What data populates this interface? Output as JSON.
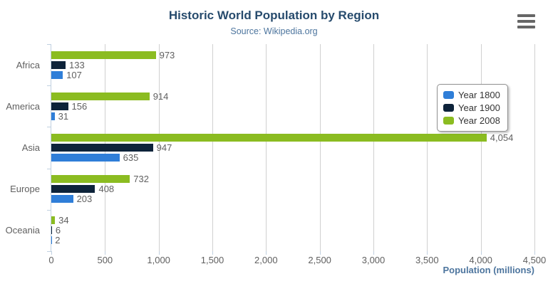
{
  "header": {
    "title": "Historic World Population by Region",
    "subtitle": "Source: Wikipedia.org"
  },
  "export_menu": {
    "icon": "hamburger-icon"
  },
  "chart_data": {
    "type": "bar",
    "orientation": "horizontal",
    "title": "Historic World Population by Region",
    "subtitle": "Source: Wikipedia.org",
    "categories": [
      "Africa",
      "America",
      "Asia",
      "Europe",
      "Oceania"
    ],
    "series": [
      {
        "name": "Year 1800",
        "color": "#2f7ed8",
        "values": [
          107,
          31,
          635,
          203,
          2
        ]
      },
      {
        "name": "Year 1900",
        "color": "#0d233a",
        "values": [
          133,
          156,
          947,
          408,
          6
        ]
      },
      {
        "name": "Year 2008",
        "color": "#8bbc21",
        "values": [
          973,
          914,
          4054,
          732,
          34
        ]
      }
    ],
    "bar_order_top_to_bottom": [
      "Year 2008",
      "Year 1900",
      "Year 1800"
    ],
    "data_labels": {
      "Africa": {
        "Year 2008": "973",
        "Year 1900": "133",
        "Year 1800": "107"
      },
      "America": {
        "Year 2008": "914",
        "Year 1900": "156",
        "Year 1800": "31"
      },
      "Asia": {
        "Year 2008": "4,054",
        "Year 1900": "947",
        "Year 1800": "635"
      },
      "Europe": {
        "Year 2008": "732",
        "Year 1900": "408",
        "Year 1800": "203"
      },
      "Oceania": {
        "Year 2008": "34",
        "Year 1900": "6",
        "Year 1800": "2"
      }
    },
    "xlabel": "Population (millions)",
    "ylabel": "",
    "xlim": [
      0,
      4500
    ],
    "xticks": [
      0,
      500,
      1000,
      1500,
      2000,
      2500,
      3000,
      3500,
      4000,
      4500
    ],
    "xtick_labels": [
      "0",
      "500",
      "1,000",
      "1,500",
      "2,000",
      "2,500",
      "3,000",
      "3,500",
      "4,000",
      "4,500"
    ],
    "grid": true,
    "legend_position": "right",
    "legend_entries": [
      "Year 1800",
      "Year 1900",
      "Year 2008"
    ]
  },
  "colors": {
    "title": "#274b6d",
    "subtitle": "#4d759e",
    "axis_title": "#4d759e",
    "labels": "#606060",
    "gridline": "#d0d0d0",
    "axis_line": "#c0d0e0",
    "legend_border": "#909090",
    "menu_icon": "#666666"
  }
}
